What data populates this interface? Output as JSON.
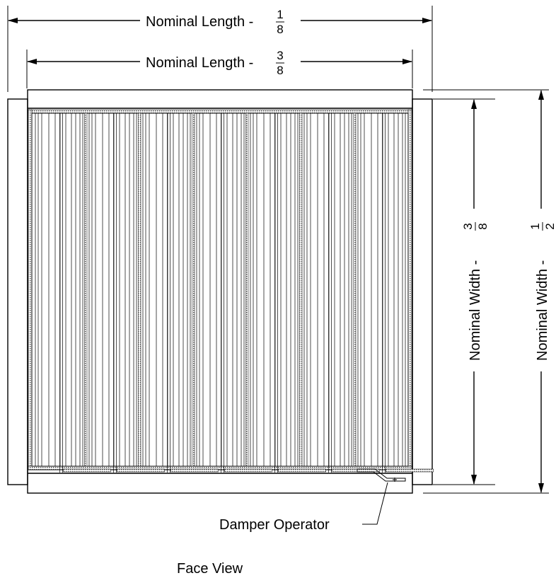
{
  "dimensions": {
    "overall_length": {
      "text": "Nominal Length - ",
      "num": "1",
      "den": "8"
    },
    "inner_length": {
      "text": "Nominal Length - ",
      "num": "3",
      "den": "8"
    },
    "inner_width": {
      "text": "Nominal Width - ",
      "num": "3",
      "den": "8"
    },
    "overall_width": {
      "text": "Nominal Width - ",
      "num": "1",
      "den": "2"
    }
  },
  "callouts": {
    "damper_operator": "Damper Operator"
  },
  "caption": "Face View",
  "damper": {
    "blade_count": 7
  }
}
